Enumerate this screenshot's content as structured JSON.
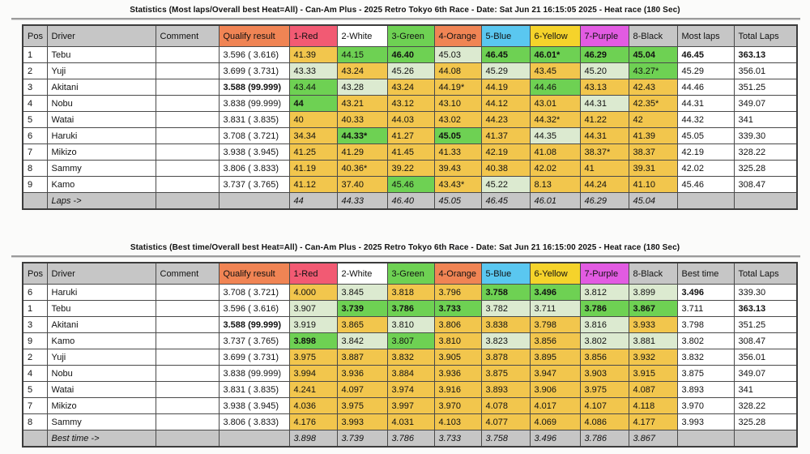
{
  "palette": {
    "header_gray": "#c6c6c6",
    "header_orange": "#f08454",
    "header_red": "#f25a73",
    "header_white": "#ffffff",
    "header_green": "#6ed153",
    "header_blue": "#5ac7f0",
    "header_yellow": "#f5d32b",
    "header_purple": "#e25be2",
    "cell_yellow": "#f2c64d",
    "cell_green": "#6ed153",
    "cell_palegreen": "#dcead0",
    "footer_gray": "#c6c6c6"
  },
  "tables": [
    {
      "title": "Statistics (Most laps/Overall best Heat=All) - Can-Am Plus - 2025 Retro Tokyo 6th Race - Date: Sat Jun 21 16:15:05 2025 - Heat race (180 Sec)",
      "columns": [
        {
          "label": "Pos",
          "bg": "gray"
        },
        {
          "label": "Driver",
          "bg": "gray"
        },
        {
          "label": "Comment",
          "bg": "gray"
        },
        {
          "label": "Qualify result",
          "bg": "orange"
        },
        {
          "label": "1-Red",
          "bg": "red"
        },
        {
          "label": "2-White",
          "bg": "white"
        },
        {
          "label": "3-Green",
          "bg": "green"
        },
        {
          "label": "4-Orange",
          "bg": "orange"
        },
        {
          "label": "5-Blue",
          "bg": "blue"
        },
        {
          "label": "6-Yellow",
          "bg": "yellow"
        },
        {
          "label": "7-Purple",
          "bg": "purple"
        },
        {
          "label": "8-Black",
          "bg": "gray"
        },
        {
          "label": "Most laps",
          "bg": "gray"
        },
        {
          "label": "Total Laps",
          "bg": "gray"
        }
      ],
      "rows": [
        {
          "pos": "1",
          "driver": "Tebu",
          "comment": "",
          "qualify": "3.596 ( 3.616)",
          "qualify_bold": false,
          "lanes": [
            "41.39|y",
            "44.15|g",
            "46.40|g|b",
            "45.03|p",
            "46.45|g|b",
            "46.01*|g|b",
            "46.29|g|b",
            "45.04|g|b"
          ],
          "result": "46.45",
          "result_bold": true,
          "total": "363.13",
          "total_bold": true
        },
        {
          "pos": "2",
          "driver": "Yuji",
          "comment": "",
          "qualify": "3.699 ( 3.731)",
          "qualify_bold": false,
          "lanes": [
            "43.33|p",
            "43.24|y",
            "45.26|p",
            "44.08|y",
            "45.29|p",
            "43.45|y",
            "45.20|p",
            "43.27*|g"
          ],
          "result": "45.29",
          "result_bold": false,
          "total": "356.01",
          "total_bold": false
        },
        {
          "pos": "3",
          "driver": "Akitani",
          "comment": "",
          "qualify": "3.588 (99.999)",
          "qualify_bold": true,
          "lanes": [
            "43.44|g",
            "43.28|p",
            "43.24|y",
            "44.19*|y",
            "44.19|y",
            "44.46|g",
            "43.13|y",
            "42.43|y"
          ],
          "result": "44.46",
          "result_bold": false,
          "total": "351.25",
          "total_bold": false
        },
        {
          "pos": "4",
          "driver": "Nobu",
          "comment": "",
          "qualify": "3.838 (99.999)",
          "qualify_bold": false,
          "lanes": [
            "44|g|b",
            "43.21|y",
            "43.12|y",
            "43.10|y",
            "44.12|y",
            "43.01|y",
            "44.31|p",
            "42.35*|y"
          ],
          "result": "44.31",
          "result_bold": false,
          "total": "349.07",
          "total_bold": false
        },
        {
          "pos": "5",
          "driver": "Watai",
          "comment": "",
          "qualify": "3.831 ( 3.835)",
          "qualify_bold": false,
          "lanes": [
            "40|y",
            "40.33|y",
            "44.03|y",
            "43.02|y",
            "44.23|y",
            "44.32*|y",
            "41.22|y",
            "42|y"
          ],
          "result": "44.32",
          "result_bold": false,
          "total": "341",
          "total_bold": false
        },
        {
          "pos": "6",
          "driver": "Haruki",
          "comment": "",
          "qualify": "3.708 ( 3.721)",
          "qualify_bold": false,
          "lanes": [
            "34.34|y",
            "44.33*|g|b",
            "41.27|y",
            "45.05|g|b",
            "41.37|y",
            "44.35|p",
            "44.31|y",
            "41.39|y"
          ],
          "result": "45.05",
          "result_bold": false,
          "total": "339.30",
          "total_bold": false
        },
        {
          "pos": "7",
          "driver": "Mikizo",
          "comment": "",
          "qualify": "3.938 ( 3.945)",
          "qualify_bold": false,
          "lanes": [
            "41.25|y",
            "41.29|y",
            "41.45|y",
            "41.33|y",
            "42.19|y",
            "41.08|y",
            "38.37*|y",
            "38.37|y"
          ],
          "result": "42.19",
          "result_bold": false,
          "total": "328.22",
          "total_bold": false
        },
        {
          "pos": "8",
          "driver": "Sammy",
          "comment": "",
          "qualify": "3.806 ( 3.833)",
          "qualify_bold": false,
          "lanes": [
            "41.19|y",
            "40.36*|y",
            "39.22|y",
            "39.43|y",
            "40.38|y",
            "42.02|y",
            "41|y",
            "39.31|y"
          ],
          "result": "42.02",
          "result_bold": false,
          "total": "325.28",
          "total_bold": false
        },
        {
          "pos": "9",
          "driver": "Kamo",
          "comment": "",
          "qualify": "3.737 ( 3.765)",
          "qualify_bold": false,
          "lanes": [
            "41.12|y",
            "37.40|y",
            "45.46|g",
            "43.43*|y",
            "45.22|p",
            "8.13|y",
            "44.24|y",
            "41.10|y"
          ],
          "result": "45.46",
          "result_bold": false,
          "total": "308.47",
          "total_bold": false
        }
      ],
      "footer": {
        "label": "Laps ->",
        "values": [
          "44",
          "44.33",
          "46.40",
          "45.05",
          "46.45",
          "46.01",
          "46.29",
          "45.04"
        ]
      }
    },
    {
      "title": "Statistics (Best time/Overall best Heat=All) - Can-Am Plus - 2025 Retro Tokyo 6th Race - Date: Sat Jun 21 16:15:00 2025 - Heat race (180 Sec)",
      "columns": [
        {
          "label": "Pos",
          "bg": "gray"
        },
        {
          "label": "Driver",
          "bg": "gray"
        },
        {
          "label": "Comment",
          "bg": "gray"
        },
        {
          "label": "Qualify result",
          "bg": "orange"
        },
        {
          "label": "1-Red",
          "bg": "red"
        },
        {
          "label": "2-White",
          "bg": "white"
        },
        {
          "label": "3-Green",
          "bg": "green"
        },
        {
          "label": "4-Orange",
          "bg": "orange"
        },
        {
          "label": "5-Blue",
          "bg": "blue"
        },
        {
          "label": "6-Yellow",
          "bg": "yellow"
        },
        {
          "label": "7-Purple",
          "bg": "purple"
        },
        {
          "label": "8-Black",
          "bg": "gray"
        },
        {
          "label": "Best time",
          "bg": "gray"
        },
        {
          "label": "Total Laps",
          "bg": "gray"
        }
      ],
      "rows": [
        {
          "pos": "6",
          "driver": "Haruki",
          "comment": "",
          "qualify": "3.708 ( 3.721)",
          "qualify_bold": false,
          "lanes": [
            "4.000|y",
            "3.845|p",
            "3.818|y",
            "3.796|y",
            "3.758|g|b",
            "3.496|g|b",
            "3.812|p",
            "3.899|p"
          ],
          "result": "3.496",
          "result_bold": true,
          "total": "339.30",
          "total_bold": false
        },
        {
          "pos": "1",
          "driver": "Tebu",
          "comment": "",
          "qualify": "3.596 ( 3.616)",
          "qualify_bold": false,
          "lanes": [
            "3.907|p",
            "3.739|g|b",
            "3.786|g|b",
            "3.733|g|b",
            "3.782|p",
            "3.711|p",
            "3.786|g|b",
            "3.867|g|b"
          ],
          "result": "3.711",
          "result_bold": false,
          "total": "363.13",
          "total_bold": true
        },
        {
          "pos": "3",
          "driver": "Akitani",
          "comment": "",
          "qualify": "3.588 (99.999)",
          "qualify_bold": true,
          "lanes": [
            "3.919|p",
            "3.865|y",
            "3.810|p",
            "3.806|y",
            "3.838|y",
            "3.798|y",
            "3.816|p",
            "3.933|y"
          ],
          "result": "3.798",
          "result_bold": false,
          "total": "351.25",
          "total_bold": false
        },
        {
          "pos": "9",
          "driver": "Kamo",
          "comment": "",
          "qualify": "3.737 ( 3.765)",
          "qualify_bold": false,
          "lanes": [
            "3.898|g|b",
            "3.842|p",
            "3.807|g",
            "3.810|y",
            "3.823|p",
            "3.856|y",
            "3.802|p",
            "3.881|p"
          ],
          "result": "3.802",
          "result_bold": false,
          "total": "308.47",
          "total_bold": false
        },
        {
          "pos": "2",
          "driver": "Yuji",
          "comment": "",
          "qualify": "3.699 ( 3.731)",
          "qualify_bold": false,
          "lanes": [
            "3.975|y",
            "3.887|y",
            "3.832|y",
            "3.905|y",
            "3.878|y",
            "3.895|y",
            "3.856|y",
            "3.932|y"
          ],
          "result": "3.832",
          "result_bold": false,
          "total": "356.01",
          "total_bold": false
        },
        {
          "pos": "4",
          "driver": "Nobu",
          "comment": "",
          "qualify": "3.838 (99.999)",
          "qualify_bold": false,
          "lanes": [
            "3.994|y",
            "3.936|y",
            "3.884|y",
            "3.936|y",
            "3.875|y",
            "3.947|y",
            "3.903|y",
            "3.915|y"
          ],
          "result": "3.875",
          "result_bold": false,
          "total": "349.07",
          "total_bold": false
        },
        {
          "pos": "5",
          "driver": "Watai",
          "comment": "",
          "qualify": "3.831 ( 3.835)",
          "qualify_bold": false,
          "lanes": [
            "4.241|y",
            "4.097|y",
            "3.974|y",
            "3.916|y",
            "3.893|y",
            "3.906|y",
            "3.975|y",
            "4.087|y"
          ],
          "result": "3.893",
          "result_bold": false,
          "total": "341",
          "total_bold": false
        },
        {
          "pos": "7",
          "driver": "Mikizo",
          "comment": "",
          "qualify": "3.938 ( 3.945)",
          "qualify_bold": false,
          "lanes": [
            "4.036|y",
            "3.975|y",
            "3.997|y",
            "3.970|y",
            "4.078|y",
            "4.017|y",
            "4.107|y",
            "4.118|y"
          ],
          "result": "3.970",
          "result_bold": false,
          "total": "328.22",
          "total_bold": false
        },
        {
          "pos": "8",
          "driver": "Sammy",
          "comment": "",
          "qualify": "3.806 ( 3.833)",
          "qualify_bold": false,
          "lanes": [
            "4.176|y",
            "3.993|y",
            "4.031|y",
            "4.103|y",
            "4.077|y",
            "4.069|y",
            "4.086|y",
            "4.177|y"
          ],
          "result": "3.993",
          "result_bold": false,
          "total": "325.28",
          "total_bold": false
        }
      ],
      "footer": {
        "label": "Best time ->",
        "values": [
          "3.898",
          "3.739",
          "3.786",
          "3.733",
          "3.758",
          "3.496",
          "3.786",
          "3.867"
        ]
      }
    }
  ]
}
